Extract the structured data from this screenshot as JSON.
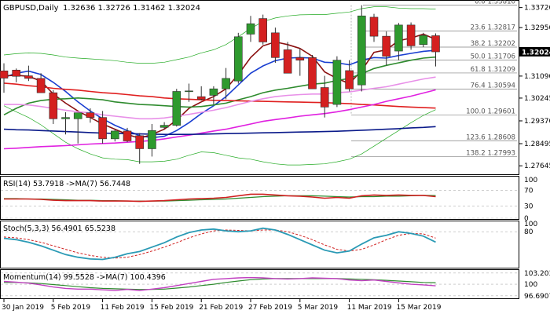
{
  "header": {
    "symbol": "GBPUSD,Daily",
    "ohlc": "1.32636 1.32726 1.31462 1.32024"
  },
  "colors": {
    "bull": "#2e9a2e",
    "bear": "#d42020",
    "wick": "#303030",
    "ma_red": "#e02020",
    "ma_blue": "#1a3fd1",
    "ma_maroon": "#8b1010",
    "ma_green": "#2e8b2e",
    "ma_magenta": "#e020e0",
    "ma_pink": "#e890e8",
    "ma_navy": "#0a1a8a",
    "bollinger": "#22aa22",
    "fib": "#808080",
    "rsi": "#d02020",
    "rsi_ma": "#2e8b2e",
    "stoch_main": "#2a9ab5",
    "stoch_signal": "#d02020",
    "momentum": "#c040c0",
    "momentum_ma": "#2e8b2e",
    "current_price_bg": "#000000",
    "current_price_fg": "#ffffff",
    "grid": "#cccccc"
  },
  "chart_data": {
    "type": "candlestick",
    "title": "GBPUSD,Daily",
    "ylim": [
      1.2735,
      1.3392
    ],
    "y_ticks": [
      "1.33720",
      "1.32950",
      "1.32024",
      "1.31090",
      "1.30245",
      "1.29370",
      "1.28495",
      "1.27645"
    ],
    "y_tick_values": [
      1.3372,
      1.3295,
      1.32024,
      1.3109,
      1.30245,
      1.2937,
      1.28495,
      1.27645
    ],
    "current_price": "1.32024",
    "current_price_value": 1.32024,
    "x_ticks": [
      "30 Jan 2019",
      "5 Feb 2019",
      "11 Feb 2019",
      "15 Feb 2019",
      "21 Feb 2019",
      "27 Feb 2019",
      "5 Mar 2019",
      "11 Mar 2019",
      "15 Mar 2019"
    ],
    "x_tick_bars": [
      0,
      4,
      8,
      12,
      16,
      20,
      24,
      28,
      32
    ],
    "candles": [
      {
        "o": 1.3129,
        "h": 1.3158,
        "l": 1.3045,
        "c": 1.3101
      },
      {
        "o": 1.3132,
        "h": 1.3138,
        "l": 1.3085,
        "c": 1.3108
      },
      {
        "o": 1.311,
        "h": 1.3149,
        "l": 1.309,
        "c": 1.31
      },
      {
        "o": 1.31,
        "h": 1.312,
        "l": 1.3045,
        "c": 1.3045
      },
      {
        "o": 1.3045,
        "h": 1.3055,
        "l": 1.2925,
        "c": 1.2945
      },
      {
        "o": 1.2945,
        "h": 1.297,
        "l": 1.2885,
        "c": 1.295
      },
      {
        "o": 1.2945,
        "h": 1.2968,
        "l": 1.285,
        "c": 1.2968
      },
      {
        "o": 1.2968,
        "h": 1.2985,
        "l": 1.293,
        "c": 1.295
      },
      {
        "o": 1.295,
        "h": 1.2975,
        "l": 1.285,
        "c": 1.2868
      },
      {
        "o": 1.2868,
        "h": 1.2905,
        "l": 1.2858,
        "c": 1.2898
      },
      {
        "o": 1.2898,
        "h": 1.291,
        "l": 1.2855,
        "c": 1.286
      },
      {
        "o": 1.288,
        "h": 1.289,
        "l": 1.2772,
        "c": 1.283
      },
      {
        "o": 1.283,
        "h": 1.2925,
        "l": 1.28,
        "c": 1.29
      },
      {
        "o": 1.2912,
        "h": 1.2932,
        "l": 1.2905,
        "c": 1.292
      },
      {
        "o": 1.292,
        "h": 1.306,
        "l": 1.2915,
        "c": 1.305
      },
      {
        "o": 1.305,
        "h": 1.308,
        "l": 1.301,
        "c": 1.3052
      },
      {
        "o": 1.303,
        "h": 1.307,
        "l": 1.3015,
        "c": 1.302
      },
      {
        "o": 1.3035,
        "h": 1.307,
        "l": 1.3,
        "c": 1.306
      },
      {
        "o": 1.306,
        "h": 1.314,
        "l": 1.302,
        "c": 1.31
      },
      {
        "o": 1.309,
        "h": 1.3275,
        "l": 1.308,
        "c": 1.326
      },
      {
        "o": 1.327,
        "h": 1.334,
        "l": 1.324,
        "c": 1.331
      },
      {
        "o": 1.333,
        "h": 1.3345,
        "l": 1.323,
        "c": 1.324
      },
      {
        "o": 1.3275,
        "h": 1.3295,
        "l": 1.316,
        "c": 1.318
      },
      {
        "o": 1.321,
        "h": 1.324,
        "l": 1.312,
        "c": 1.312
      },
      {
        "o": 1.318,
        "h": 1.3215,
        "l": 1.311,
        "c": 1.317
      },
      {
        "o": 1.318,
        "h": 1.319,
        "l": 1.306,
        "c": 1.306
      },
      {
        "o": 1.3065,
        "h": 1.311,
        "l": 1.295,
        "c": 1.299
      },
      {
        "o": 1.3,
        "h": 1.3185,
        "l": 1.299,
        "c": 1.317
      },
      {
        "o": 1.313,
        "h": 1.317,
        "l": 1.305,
        "c": 1.306
      },
      {
        "o": 1.3075,
        "h": 1.3381,
        "l": 1.305,
        "c": 1.334
      },
      {
        "o": 1.3335,
        "h": 1.3348,
        "l": 1.324,
        "c": 1.3262
      },
      {
        "o": 1.3262,
        "h": 1.328,
        "l": 1.315,
        "c": 1.3185
      },
      {
        "o": 1.3205,
        "h": 1.3313,
        "l": 1.317,
        "c": 1.3305
      },
      {
        "o": 1.3305,
        "h": 1.3315,
        "l": 1.321,
        "c": 1.3225
      },
      {
        "o": 1.323,
        "h": 1.3275,
        "l": 1.322,
        "c": 1.3265
      },
      {
        "o": 1.3264,
        "h": 1.3273,
        "l": 1.3146,
        "c": 1.3202
      }
    ],
    "fibonacci": [
      {
        "label": "0.0 1.33810",
        "value": 1.3381
      },
      {
        "label": "23.6 1.32817",
        "value": 1.32817
      },
      {
        "label": "38.2 1.32202",
        "value": 1.32202
      },
      {
        "label": "50.0 1.31706",
        "value": 1.31706
      },
      {
        "label": "61.8 1.31209",
        "value": 1.31209
      },
      {
        "label": "76.4 1.30594",
        "value": 1.30594
      },
      {
        "label": "100.0 1.29601",
        "value": 1.29601
      },
      {
        "label": "123.6 1.28608",
        "value": 1.28608
      },
      {
        "label": "138.2 1.27993",
        "value": 1.27993
      }
    ],
    "moving_averages": [
      {
        "color_key": "ma_blue",
        "values": [
          1.3104,
          1.312,
          1.3128,
          1.3115,
          1.3085,
          1.305,
          1.301,
          1.2975,
          1.2945,
          1.292,
          1.29,
          1.288,
          1.2872,
          1.2878,
          1.29,
          1.293,
          1.2965,
          1.2995,
          1.303,
          1.3075,
          1.312,
          1.3148,
          1.3168,
          1.3178,
          1.318,
          1.3178,
          1.3162,
          1.316,
          1.3152,
          1.317,
          1.318,
          1.3178,
          1.3188,
          1.3196,
          1.3204,
          1.3208
        ]
      },
      {
        "color_key": "ma_maroon",
        "values": [
          1.311,
          1.3112,
          1.3108,
          1.309,
          1.304,
          1.3005,
          1.2975,
          1.295,
          1.2925,
          1.2905,
          1.2885,
          1.287,
          1.2885,
          1.2905,
          1.294,
          1.2985,
          1.301,
          1.303,
          1.306,
          1.3115,
          1.318,
          1.3225,
          1.324,
          1.323,
          1.3215,
          1.3185,
          1.3125,
          1.31,
          1.308,
          1.313,
          1.32,
          1.321,
          1.3245,
          1.3255,
          1.327,
          1.325
        ]
      },
      {
        "color_key": "ma_green",
        "values": [
          1.296,
          1.2985,
          1.3005,
          1.3015,
          1.302,
          1.3022,
          1.3025,
          1.3022,
          1.3018,
          1.301,
          1.3005,
          1.3,
          1.2998,
          1.2995,
          1.2992,
          1.299,
          1.2992,
          1.2998,
          1.3005,
          1.3018,
          1.303,
          1.3045,
          1.3055,
          1.3062,
          1.307,
          1.3078,
          1.3082,
          1.3092,
          1.31,
          1.3118,
          1.3138,
          1.315,
          1.316,
          1.317,
          1.3178,
          1.3182
        ]
      },
      {
        "color_key": "ma_red",
        "values": [
          1.3082,
          1.3078,
          1.3072,
          1.3068,
          1.3062,
          1.3058,
          1.3055,
          1.305,
          1.3045,
          1.3042,
          1.3038,
          1.3033,
          1.303,
          1.3025,
          1.3022,
          1.302,
          1.3018,
          1.3016,
          1.3015,
          1.3014,
          1.3013,
          1.3012,
          1.3011,
          1.301,
          1.3009,
          1.3008,
          1.3007,
          1.3005,
          1.3003,
          1.3,
          1.2998,
          1.2995,
          1.2992,
          1.299,
          1.2988,
          1.2986
        ]
      },
      {
        "color_key": "ma_pink",
        "values": [
          1.3,
          1.3,
          1.2998,
          1.2992,
          1.2985,
          1.2978,
          1.2972,
          1.2968,
          1.296,
          1.2955,
          1.295,
          1.2945,
          1.2945,
          1.2948,
          1.2955,
          1.2962,
          1.297,
          1.2978,
          1.2988,
          1.3,
          1.3012,
          1.3022,
          1.303,
          1.3035,
          1.3038,
          1.304,
          1.304,
          1.3045,
          1.3048,
          1.3055,
          1.3062,
          1.3068,
          1.3078,
          1.3088,
          1.3098,
          1.3105
        ]
      },
      {
        "color_key": "ma_magenta",
        "values": [
          1.283,
          1.2832,
          1.2835,
          1.2838,
          1.284,
          1.2842,
          1.2845,
          1.2848,
          1.285,
          1.2852,
          1.2855,
          1.2858,
          1.2862,
          1.2868,
          1.2875,
          1.2882,
          1.289,
          1.2898,
          1.2905,
          1.2915,
          1.2925,
          1.2935,
          1.2942,
          1.2948,
          1.2955,
          1.296,
          1.2965,
          1.2972,
          1.298,
          1.299,
          1.3,
          1.3012,
          1.3022,
          1.3032,
          1.3044,
          1.3056
        ]
      },
      {
        "color_key": "ma_navy",
        "values": [
          1.2905,
          1.2903,
          1.2902,
          1.29,
          1.2898,
          1.2896,
          1.2894,
          1.2892,
          1.289,
          1.2889,
          1.2888,
          1.2887,
          1.2886,
          1.2885,
          1.2885,
          1.2885,
          1.2886,
          1.2887,
          1.2888,
          1.2889,
          1.289,
          1.2891,
          1.2892,
          1.2893,
          1.2894,
          1.2895,
          1.2896,
          1.2897,
          1.2899,
          1.2901,
          1.2903,
          1.2905,
          1.2907,
          1.291,
          1.2912,
          1.2915
        ]
      }
    ],
    "bollinger_upper": [
      1.319,
      1.3195,
      1.3198,
      1.3196,
      1.319,
      1.3182,
      1.3178,
      1.3175,
      1.3172,
      1.3168,
      1.3162,
      1.3158,
      1.3158,
      1.3162,
      1.3172,
      1.3182,
      1.3198,
      1.321,
      1.323,
      1.326,
      1.3292,
      1.3318,
      1.3332,
      1.334,
      1.3344,
      1.3345,
      1.3345,
      1.335,
      1.3355,
      1.3368,
      1.3375,
      1.3375,
      1.337,
      1.3368,
      1.3368,
      1.3366
    ],
    "bollinger_lower": [
      1.2995,
      1.2972,
      1.295,
      1.2922,
      1.2888,
      1.2855,
      1.283,
      1.281,
      1.2795,
      1.279,
      1.2788,
      1.278,
      1.278,
      1.2782,
      1.279,
      1.2805,
      1.2818,
      1.2815,
      1.2805,
      1.2795,
      1.279,
      1.278,
      1.2772,
      1.2768,
      1.2768,
      1.277,
      1.2772,
      1.278,
      1.279,
      1.281,
      1.284,
      1.287,
      1.29,
      1.293,
      1.2958,
      1.298
    ],
    "rsi": {
      "label": "RSI(14) 53.7918  ->MA(7) 56.7448",
      "levels_shown": [
        "70",
        "30",
        "0"
      ],
      "levels_values": [
        70,
        30,
        0
      ],
      "top_value": 100,
      "rsi_values": [
        48,
        48,
        48,
        47,
        45,
        44,
        44,
        44,
        43,
        43,
        43,
        42,
        43,
        44,
        46,
        48,
        49,
        50,
        52,
        56,
        60,
        60,
        58,
        56,
        55,
        53,
        50,
        52,
        50,
        56,
        58,
        57,
        58,
        57,
        57,
        54
      ],
      "ma_values": [
        49,
        49,
        48,
        48,
        47,
        46,
        45,
        45,
        44,
        44,
        43,
        43,
        43,
        43,
        44,
        45,
        46,
        47,
        48,
        50,
        52,
        54,
        55,
        56,
        56,
        56,
        55,
        54,
        53,
        54,
        54,
        55,
        55,
        56,
        57,
        56.7
      ]
    },
    "stochastic": {
      "label": "Stoch(5,3,3) 56.4901 65.5238",
      "level_shown": "80",
      "level_value": 80,
      "top_value": 100,
      "main_values": [
        65,
        62,
        56,
        48,
        38,
        28,
        22,
        18,
        17,
        22,
        30,
        35,
        45,
        55,
        68,
        78,
        84,
        86,
        82,
        80,
        82,
        88,
        84,
        74,
        62,
        50,
        38,
        32,
        36,
        52,
        66,
        72,
        80,
        76,
        70,
        56.5
      ],
      "signal_values": [
        68,
        66,
        62,
        56,
        48,
        40,
        32,
        26,
        22,
        20,
        22,
        28,
        36,
        45,
        55,
        66,
        75,
        82,
        84,
        83,
        82,
        84,
        84,
        80,
        72,
        62,
        50,
        40,
        36,
        40,
        50,
        62,
        72,
        76,
        75,
        65.5
      ]
    },
    "momentum": {
      "label": "Momentum(14) 99.5528  ->MA(7) 100.4396",
      "levels_shown": [
        "103.203",
        "100",
        "96.6907"
      ],
      "levels_values": [
        103.203,
        100,
        96.6907
      ],
      "momentum_values": [
        100.8,
        100.6,
        100.3,
        99.8,
        99.2,
        98.8,
        98.6,
        98.6,
        98.4,
        98.2,
        98.5,
        98.2,
        98.6,
        99.0,
        99.6,
        100.2,
        100.8,
        101.4,
        101.6,
        101.8,
        101.9,
        101.8,
        101.6,
        101.5,
        101.6,
        101.8,
        101.7,
        101.6,
        101.2,
        101.0,
        101.2,
        100.8,
        100.4,
        100.0,
        99.8,
        99.55
      ],
      "ma_values": [
        100.5,
        100.5,
        100.4,
        100.2,
        99.9,
        99.6,
        99.3,
        99.0,
        98.8,
        98.7,
        98.6,
        98.5,
        98.5,
        98.6,
        98.9,
        99.2,
        99.6,
        100.0,
        100.5,
        100.9,
        101.3,
        101.5,
        101.6,
        101.6,
        101.6,
        101.6,
        101.6,
        101.6,
        101.5,
        101.4,
        101.3,
        101.1,
        100.9,
        100.7,
        100.5,
        100.44
      ]
    }
  }
}
